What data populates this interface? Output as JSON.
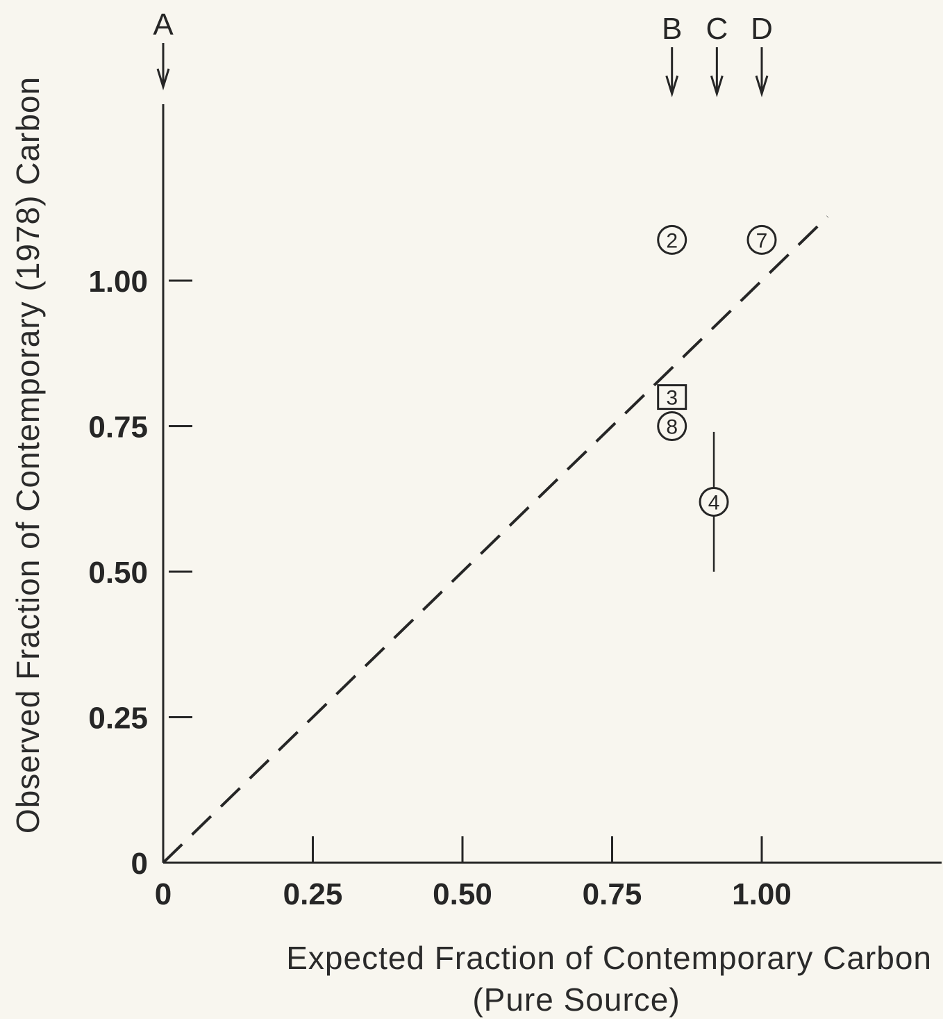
{
  "chart_data": {
    "type": "scatter",
    "xlabel_line1": "Expected Fraction of Contemporary Carbon",
    "xlabel_line2": "(Pure Source)",
    "ylabel": "Observed Fraction of Contemporary (1978) Carbon",
    "xlim": [
      0,
      1.29
    ],
    "ylim": [
      0,
      1.29
    ],
    "x_ticks": [
      0,
      0.25,
      0.5,
      0.75,
      1.0
    ],
    "x_tick_labels": [
      "0",
      "0.25",
      "0.50",
      "0.75",
      "1.00"
    ],
    "y_ticks": [
      0,
      0.25,
      0.5,
      0.75,
      1.0
    ],
    "y_tick_labels": [
      "0",
      "0.25",
      "0.50",
      "0.75",
      "1.00"
    ],
    "grid": false,
    "reference_line": {
      "style": "dashed",
      "from": [
        0,
        0
      ],
      "to": [
        1.11,
        1.11
      ]
    },
    "source_markers": [
      {
        "label": "A",
        "x": 0.0
      },
      {
        "label": "B",
        "x": 0.85
      },
      {
        "label": "C",
        "x": 0.925
      },
      {
        "label": "D",
        "x": 1.0
      }
    ],
    "points": [
      {
        "label": "2",
        "x": 0.85,
        "y": 1.07,
        "marker": "circle"
      },
      {
        "label": "7",
        "x": 1.0,
        "y": 1.07,
        "marker": "circle"
      },
      {
        "label": "3",
        "x": 0.85,
        "y": 0.8,
        "marker": "square"
      },
      {
        "label": "8",
        "x": 0.85,
        "y": 0.75,
        "marker": "circle"
      },
      {
        "label": "4",
        "x": 0.92,
        "y": 0.62,
        "marker": "circle",
        "error_low": 0.5,
        "error_high": 0.74
      }
    ]
  }
}
